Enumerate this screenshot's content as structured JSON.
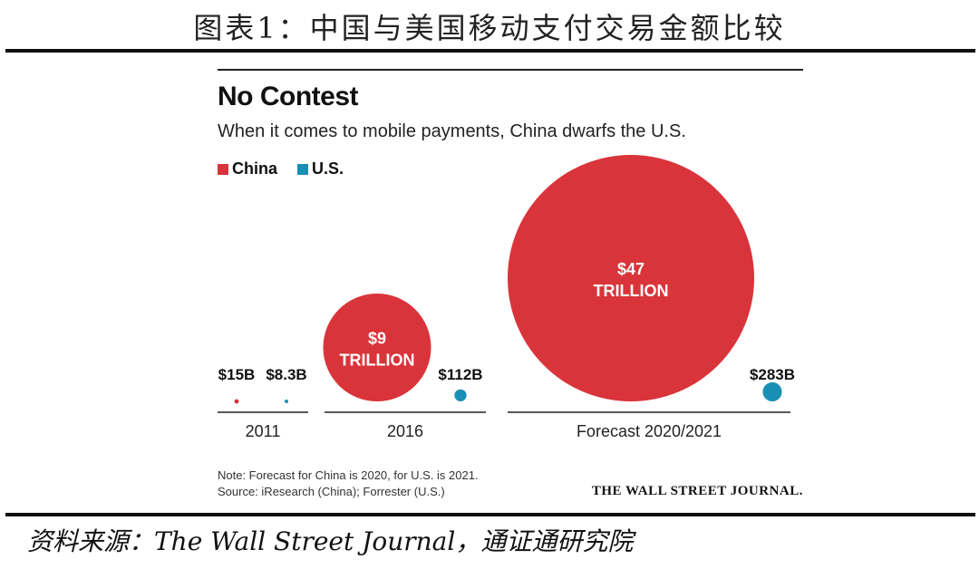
{
  "figure": {
    "caption": "图表1：中国与美国移动支付交易金额比较",
    "source": "资料来源：The Wall Street Journal，通证通研究院"
  },
  "colors": {
    "china": "#d9343a",
    "us": "#1a8fb5",
    "label_on_bubble": "#ffffff"
  },
  "chart_data": {
    "type": "bubble",
    "title": "No Contest",
    "subtitle": "When it comes to mobile payments, China dwarfs the U.S.",
    "legend": [
      {
        "name": "China",
        "color": "#d9343a"
      },
      {
        "name": "U.S.",
        "color": "#1a8fb5"
      }
    ],
    "unit": "USD",
    "groups": [
      {
        "label": "2011",
        "china": {
          "value_billion": 15,
          "label": "$15B"
        },
        "us": {
          "value_billion": 8.3,
          "label": "$8.3B"
        }
      },
      {
        "label": "2016",
        "china": {
          "value_billion": 9000,
          "label_line1": "$9",
          "label_line2": "TRILLION"
        },
        "us": {
          "value_billion": 112,
          "label": "$112B"
        }
      },
      {
        "label": "Forecast 2020/2021",
        "china": {
          "value_billion": 47000,
          "label_line1": "$47",
          "label_line2": "TRILLION"
        },
        "us": {
          "value_billion": 283,
          "label": "$283B"
        }
      }
    ],
    "note": "Note: Forecast for China is 2020, for U.S. is 2021.",
    "source": "Source: iResearch (China); Forrester (U.S.)",
    "publisher": "THE WALL STREET JOURNAL."
  }
}
